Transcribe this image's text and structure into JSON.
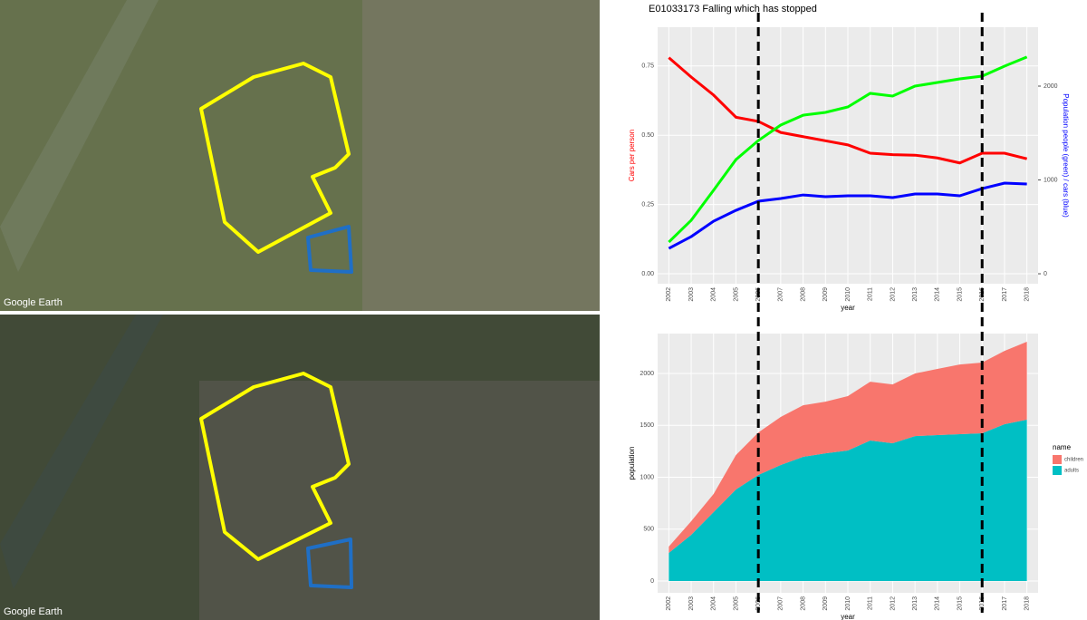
{
  "images": [
    {
      "watermark": "Google Earth"
    },
    {
      "watermark": "Google Earth"
    }
  ],
  "chart_data": [
    {
      "type": "line",
      "title": "E01033173 Falling which has stopped",
      "x_label": "year",
      "y_label": "Cars per person",
      "y2_label": "Population people (green) / cars (blue)",
      "categories": [
        "2002",
        "2003",
        "2004",
        "2005",
        "2006",
        "2007",
        "2008",
        "2009",
        "2010",
        "2011",
        "2012",
        "2013",
        "2014",
        "2015",
        "2016",
        "2017",
        "2018"
      ],
      "series": [
        {
          "name": "Cars per person",
          "color": "#ff0000",
          "values": [
            0.78,
            0.71,
            0.645,
            0.565,
            0.55,
            0.51,
            0.495,
            0.48,
            0.465,
            0.435,
            0.43,
            0.428,
            0.418,
            0.4,
            0.435,
            0.435,
            0.415
          ]
        },
        {
          "name": "Population",
          "color": "#00ff00",
          "axis": "y2",
          "values": [
            338,
            570,
            890,
            1217,
            1420,
            1585,
            1690,
            1720,
            1778,
            1923,
            1894,
            2000,
            2039,
            2077,
            2106,
            2213,
            2310
          ]
        },
        {
          "name": "Cars",
          "color": "#0000ff",
          "axis": "y2",
          "values": [
            270,
            396,
            560,
            676,
            773,
            802,
            840,
            821,
            831,
            831,
            812,
            850,
            850,
            831,
            908,
            966,
            957
          ]
        }
      ],
      "ylim": [
        -0.036,
        0.89
      ],
      "yticks": [
        {
          "value": 0,
          "label": "0.00"
        },
        {
          "value": 0.25,
          "label": "0.25"
        },
        {
          "value": 0.5,
          "label": "0.50"
        },
        {
          "value": 0.75,
          "label": "0.75"
        }
      ],
      "y2lim": [
        -106,
        2628
      ],
      "y2ticks": [
        0,
        1000,
        2000
      ],
      "grid": true,
      "vlines": [
        "2006",
        "2016"
      ]
    },
    {
      "type": "area",
      "x_label": "year",
      "y_label": "population",
      "categories": [
        "2002",
        "2003",
        "2004",
        "2005",
        "2006",
        "2007",
        "2008",
        "2009",
        "2010",
        "2011",
        "2012",
        "2013",
        "2014",
        "2015",
        "2016",
        "2017",
        "2018"
      ],
      "series": [
        {
          "name": "adults",
          "color": "#00bfc4",
          "values": [
            271,
            445,
            664,
            882,
            1022,
            1118,
            1197,
            1231,
            1258,
            1354,
            1328,
            1397,
            1406,
            1415,
            1424,
            1511,
            1555
          ]
        },
        {
          "name": "children",
          "color": "#f8766d",
          "values": [
            61,
            131,
            174,
            332,
            410,
            463,
            497,
            498,
            524,
            567,
            567,
            603,
            638,
            672,
            681,
            707,
            751
          ]
        }
      ],
      "ylim": [
        -114,
        2385
      ],
      "yticks": [
        0,
        500,
        1000,
        1500,
        2000
      ],
      "grid": true,
      "legend_title": "name",
      "legend": "right"
    }
  ]
}
